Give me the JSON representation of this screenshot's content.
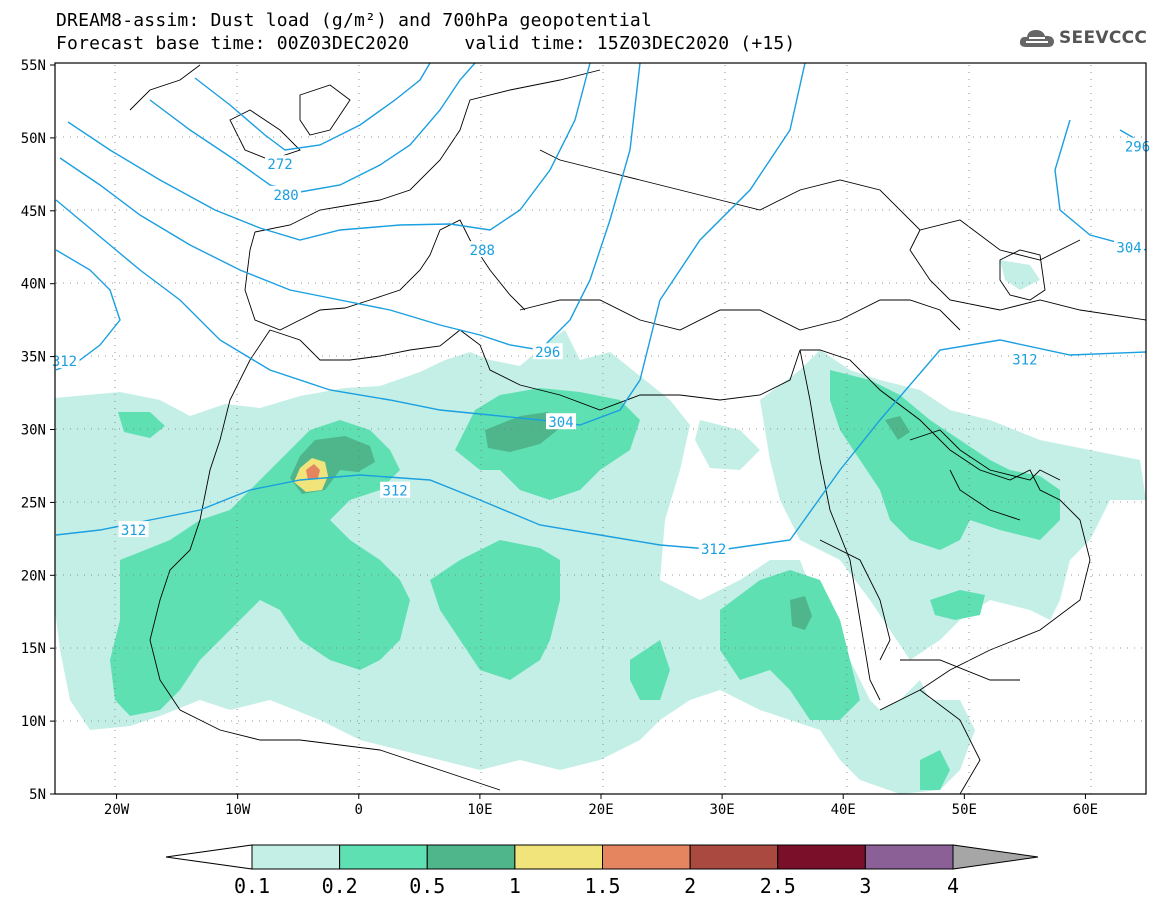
{
  "title": {
    "line1": "DREAM8-assim: Dust load (g/m²) and 700hPa geopotential",
    "line2": "Forecast base time: 00Z03DEC2020     valid time: 15Z03DEC2020 (+15)"
  },
  "logo": {
    "text": "SEEVCCC",
    "icon": "cloud-icon"
  },
  "map": {
    "lat_ticks": [
      {
        "label": "55N",
        "lat": 55
      },
      {
        "label": "50N",
        "lat": 50
      },
      {
        "label": "45N",
        "lat": 45
      },
      {
        "label": "40N",
        "lat": 40
      },
      {
        "label": "35N",
        "lat": 35
      },
      {
        "label": "30N",
        "lat": 30
      },
      {
        "label": "25N",
        "lat": 25
      },
      {
        "label": "20N",
        "lat": 20
      },
      {
        "label": "15N",
        "lat": 15
      },
      {
        "label": "10N",
        "lat": 10
      },
      {
        "label": "5N",
        "lat": 5
      }
    ],
    "lon_ticks": [
      {
        "label": "20W",
        "lon": -20
      },
      {
        "label": "10W",
        "lon": -10
      },
      {
        "label": "0",
        "lon": 0
      },
      {
        "label": "10E",
        "lon": 10
      },
      {
        "label": "20E",
        "lon": 20
      },
      {
        "label": "30E",
        "lon": 30
      },
      {
        "label": "40E",
        "lon": 40
      },
      {
        "label": "50E",
        "lon": 50
      },
      {
        "label": "60E",
        "lon": 60
      }
    ],
    "contour_labels": [
      {
        "text": "272",
        "lon": -6.5,
        "lat": 48.2
      },
      {
        "text": "280",
        "lon": -6.0,
        "lat": 46.1
      },
      {
        "text": "288",
        "lon": 10.2,
        "lat": 42.3
      },
      {
        "text": "296",
        "lon": 15.6,
        "lat": 35.3
      },
      {
        "text": "304",
        "lon": 16.7,
        "lat": 30.5
      },
      {
        "text": "312",
        "lon": -24.3,
        "lat": 34.7
      },
      {
        "text": "312",
        "lon": 3.0,
        "lat": 25.8
      },
      {
        "text": "312",
        "lon": -18.6,
        "lat": 23.1
      },
      {
        "text": "312",
        "lon": 29.3,
        "lat": 21.8
      },
      {
        "text": "312",
        "lon": 55.0,
        "lat": 34.8
      },
      {
        "text": "304",
        "lon": 63.6,
        "lat": 42.5
      },
      {
        "text": "296",
        "lon": 64.3,
        "lat": 49.4
      }
    ]
  },
  "colorbar": {
    "labels": [
      "0.1",
      "0.2",
      "0.5",
      "1",
      "1.5",
      "2",
      "2.5",
      "3",
      "4"
    ],
    "colors": [
      "#c4efe6",
      "#5ee0b3",
      "#4fb68b",
      "#f1e47b",
      "#e58560",
      "#a9493f",
      "#7a0f29",
      "#8b6096"
    ],
    "under_color": "#ffffff",
    "over_color": "#a6a6a6"
  },
  "colors": {
    "contour": "#1a9fe0",
    "coast": "#000000"
  }
}
